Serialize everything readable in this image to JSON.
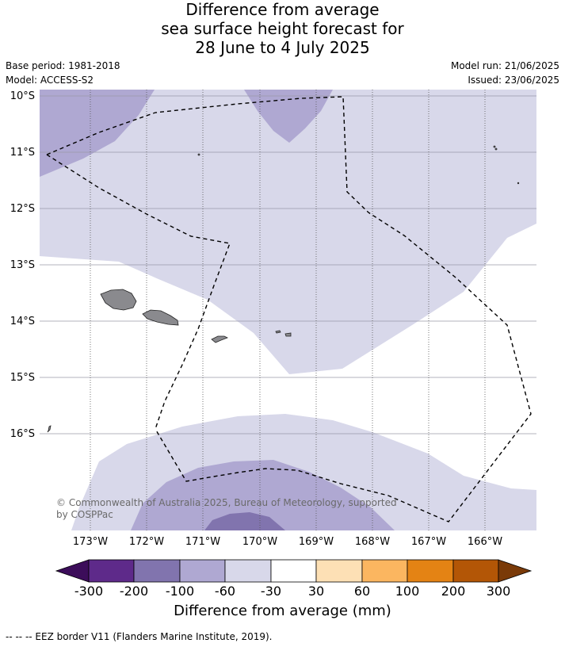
{
  "title_lines": [
    "Difference from average",
    "sea surface height forecast for",
    "28 June to 4 July 2025"
  ],
  "meta": {
    "base_period": "Base period: 1981-2018",
    "model": "Model: ACCESS-S2",
    "model_run": "Model run: 21/06/2025",
    "issued": "Issued: 23/06/2025"
  },
  "map": {
    "lat_labels": [
      "10°S",
      "11°S",
      "12°S",
      "13°S",
      "14°S",
      "15°S",
      "16°S"
    ],
    "lon_labels": [
      "173°W",
      "172°W",
      "171°W",
      "170°W",
      "169°W",
      "168°W",
      "167°W",
      "166°W"
    ],
    "copyright_line1": "© Commonwealth of Australia 2025, Bureau of Meteorology, supported",
    "copyright_line2": "by COSPPac",
    "colors": {
      "land": "#8a8a8e",
      "c_m300": "#3c0d5a",
      "c_m200": "#5e2a8a",
      "c_m100": "#8174ae",
      "c_m60": "#afa8d2",
      "c_m30": "#d8d8ea",
      "c_0": "#ffffff",
      "c_30": "#fde0b5",
      "c_60": "#fbb660",
      "c_100": "#e48314",
      "c_200": "#b35606",
      "c_300": "#7a3a08"
    }
  },
  "colorbar": {
    "ticks": [
      "-300",
      "-200",
      "-100",
      "-60",
      "-30",
      "30",
      "60",
      "100",
      "200",
      "300"
    ],
    "title": "Difference from average (mm)"
  },
  "footnote": "-- -- -- EEZ border V11 (Flanders Marine Institute, 2019)."
}
